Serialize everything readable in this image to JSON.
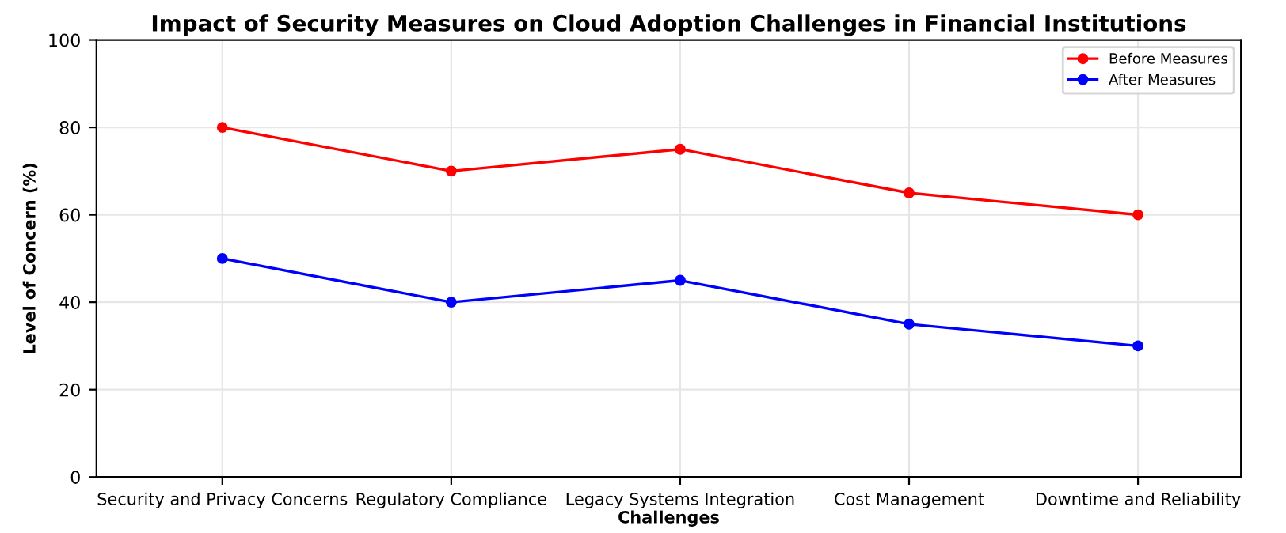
{
  "chart_data": {
    "type": "line",
    "title": "Impact of Security Measures on Cloud Adoption Challenges in Financial Institutions",
    "xlabel": "Challenges",
    "ylabel": "Level of Concern (%)",
    "categories": [
      "Security and Privacy Concerns",
      "Regulatory Compliance",
      "Legacy Systems Integration",
      "Cost Management",
      "Downtime and Reliability"
    ],
    "series": [
      {
        "name": "Before Measures",
        "color": "#ff0000",
        "values": [
          80,
          70,
          75,
          65,
          60
        ]
      },
      {
        "name": "After Measures",
        "color": "#0000ff",
        "values": [
          50,
          40,
          45,
          35,
          30
        ]
      }
    ],
    "ylim": [
      0,
      100
    ],
    "yticks": [
      0,
      20,
      40,
      60,
      80,
      100
    ],
    "grid": true,
    "legend": "top right",
    "marker": "circle",
    "line_style": "solid"
  }
}
